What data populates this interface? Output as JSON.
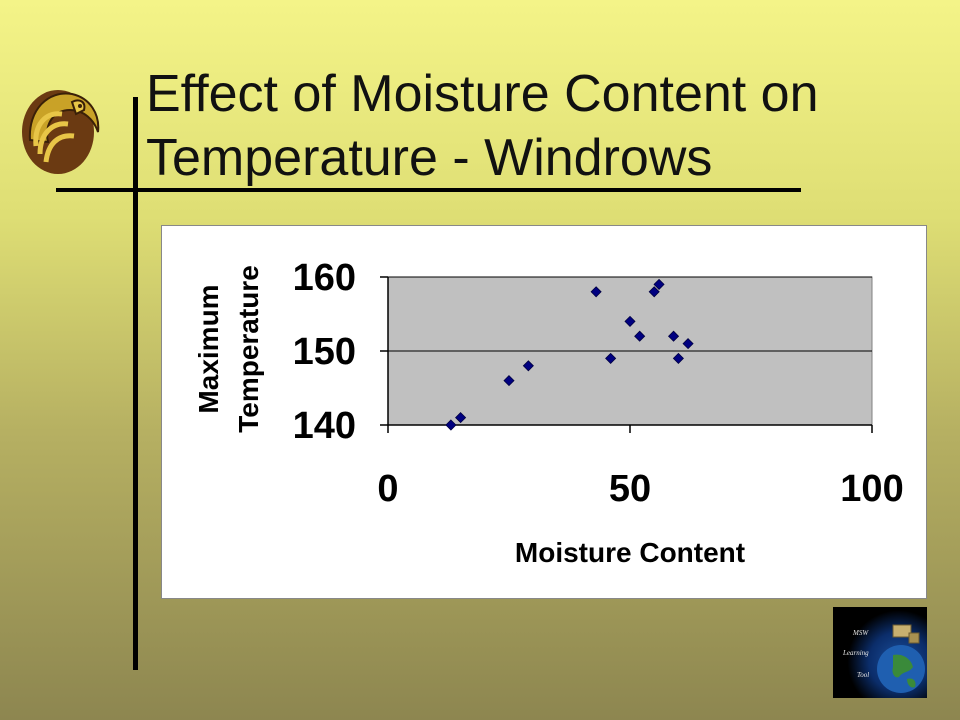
{
  "slide": {
    "title_line1": "Effect of Moisture Content on",
    "title_line2": "Temperature - Windrows"
  },
  "logo": {
    "icon": "pegasus-logo-icon",
    "colors": [
      "#c9a227",
      "#6b3a12"
    ]
  },
  "badge": {
    "line1": "MSW",
    "line2": "Learning",
    "line3": "Tool",
    "icon": "globe-icon"
  },
  "chart_data": {
    "type": "scatter",
    "title": "",
    "xlabel": "Moisture Content",
    "ylabel_line1": "Maximum",
    "ylabel_line2": "Temperature",
    "xlim": [
      0,
      100
    ],
    "ylim": [
      140,
      160
    ],
    "xticks": [
      0,
      50,
      100
    ],
    "yticks": [
      140,
      150,
      160
    ],
    "grid": true,
    "plot_background": "#c0c0c0",
    "marker_color": "#000080",
    "series": [
      {
        "x": [
          13,
          15,
          25,
          29,
          43,
          46,
          50,
          52,
          55,
          56,
          59,
          60,
          62
        ],
        "y": [
          140,
          141,
          146,
          148,
          158,
          149,
          154,
          152,
          158,
          159,
          152,
          149,
          151
        ]
      }
    ]
  }
}
